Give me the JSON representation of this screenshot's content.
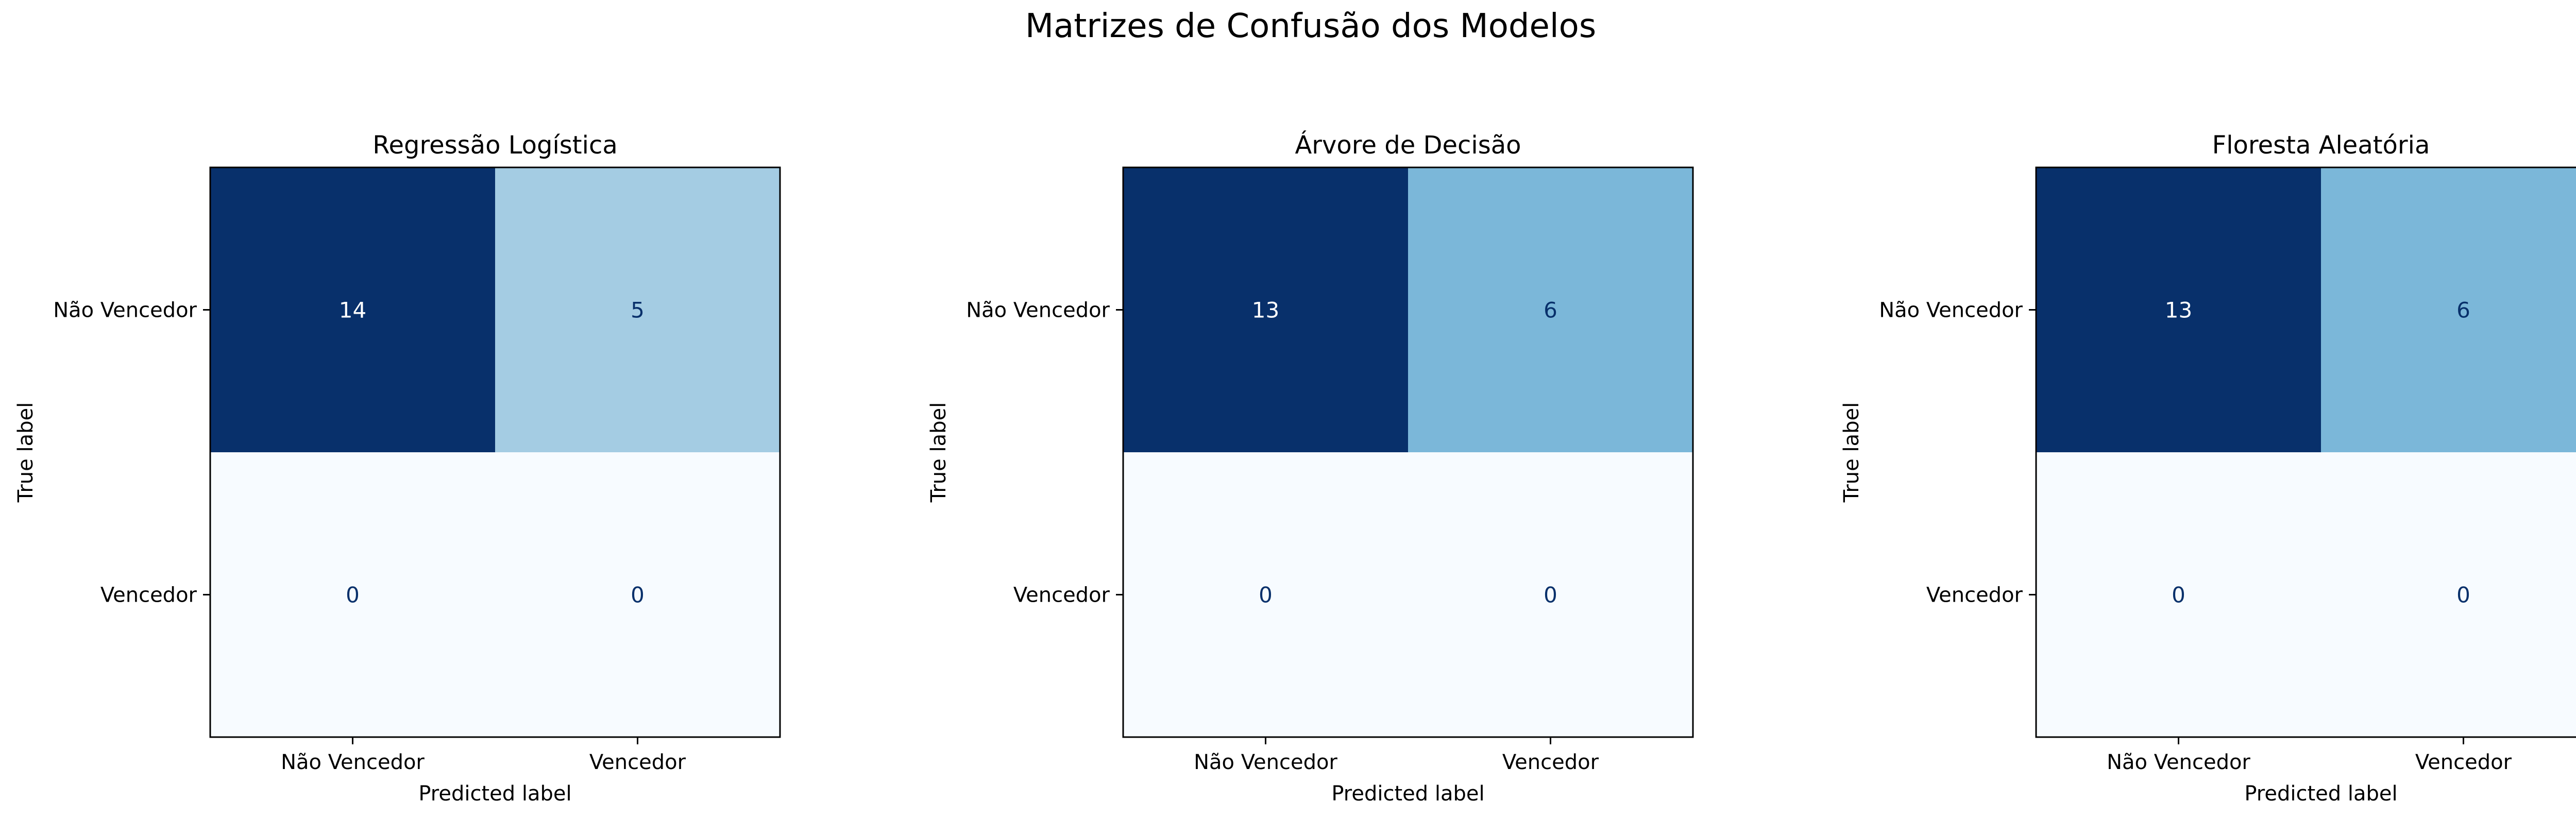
{
  "figure": {
    "title": "Matrizes de Confusão dos Modelos"
  },
  "chart_data": [
    {
      "type": "heatmap",
      "title": "Regressão Logística",
      "xlabel": "Predicted label",
      "ylabel": "True label",
      "x_categories": [
        "Não Vencedor",
        "Vencedor"
      ],
      "y_categories": [
        "Não Vencedor",
        "Vencedor"
      ],
      "values": [
        [
          14,
          5
        ],
        [
          0,
          0
        ]
      ],
      "colormap": "Blues"
    },
    {
      "type": "heatmap",
      "title": "Árvore de Decisão",
      "xlabel": "Predicted label",
      "ylabel": "True label",
      "x_categories": [
        "Não Vencedor",
        "Vencedor"
      ],
      "y_categories": [
        "Não Vencedor",
        "Vencedor"
      ],
      "values": [
        [
          13,
          6
        ],
        [
          0,
          0
        ]
      ],
      "colormap": "Blues"
    },
    {
      "type": "heatmap",
      "title": "Floresta Aleatória",
      "xlabel": "Predicted label",
      "ylabel": "True label",
      "x_categories": [
        "Não Vencedor",
        "Vencedor"
      ],
      "y_categories": [
        "Não Vencedor",
        "Vencedor"
      ],
      "values": [
        [
          13,
          6
        ],
        [
          0,
          0
        ]
      ],
      "colormap": "Blues"
    }
  ]
}
